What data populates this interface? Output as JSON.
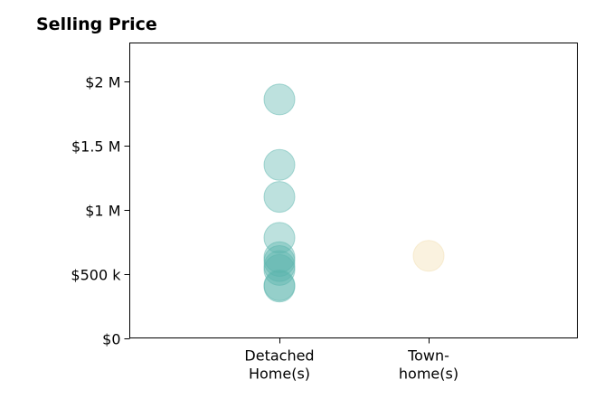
{
  "chart_data": {
    "type": "scatter",
    "title": "Selling Price",
    "xlabel": "",
    "ylabel": "",
    "categories": [
      [
        "Detached",
        "Home(s)"
      ],
      [
        "Town-",
        "home(s)"
      ]
    ],
    "ylim": [
      0,
      2300000
    ],
    "yticks": [
      {
        "value": 0,
        "label": "$0"
      },
      {
        "value": 500000,
        "label": "$500 k"
      },
      {
        "value": 1000000,
        "label": "$1 M"
      },
      {
        "value": 1500000,
        "label": "$1.5 M"
      },
      {
        "value": 2000000,
        "label": "$2 M"
      }
    ],
    "grid": false,
    "series": [
      {
        "category": 0,
        "color": "#5bb5ad",
        "values": [
          1860000,
          1350000,
          1100000,
          780000,
          630000,
          600000,
          560000,
          530000,
          410000,
          400000
        ]
      },
      {
        "category": 1,
        "color": "#f2deb0",
        "values": [
          640000
        ]
      }
    ]
  }
}
